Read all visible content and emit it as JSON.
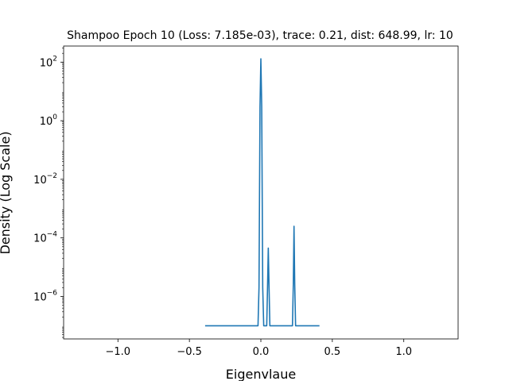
{
  "chart_data": {
    "type": "line",
    "title": "Shampoo Epoch 10 (Loss: 7.185e-03), trace: 0.21, dist: 648.99, lr: 10",
    "xlabel": "Eigenvlaue",
    "ylabel": "Density (Log Scale)",
    "xlim": [
      -1.38,
      1.38
    ],
    "ylim_log10": [
      -7.45,
      2.55
    ],
    "y_scale": "log",
    "grid": false,
    "x_ticks": [
      -1.0,
      -0.5,
      0.0,
      0.5,
      1.0
    ],
    "x_tick_labels": [
      "−1.0",
      "−0.5",
      "0.0",
      "0.5",
      "1.0"
    ],
    "y_ticks_log10": [
      -6,
      -4,
      -2,
      0,
      2
    ],
    "y_tick_labels": [
      {
        "base": "10",
        "exp": "−6"
      },
      {
        "base": "10",
        "exp": "−4"
      },
      {
        "base": "10",
        "exp": "−2"
      },
      {
        "base": "10",
        "exp": "0"
      },
      {
        "base": "10",
        "exp": "2"
      }
    ],
    "series": [
      {
        "color": "#1f77b4",
        "x": [
          -0.39,
          -0.03,
          -0.02,
          -0.013,
          -0.006,
          0.0,
          0.006,
          0.013,
          0.02,
          0.035,
          0.041,
          0.047,
          0.052,
          0.057,
          0.063,
          0.07,
          0.215,
          0.221,
          0.227,
          0.232,
          0.237,
          0.243,
          0.25,
          0.41
        ],
        "y": [
          1e-07,
          1e-07,
          1e-07,
          2e-06,
          3,
          130,
          3,
          2e-06,
          1e-07,
          1e-07,
          1e-07,
          2.5e-06,
          4.5e-05,
          2.5e-06,
          1e-07,
          1e-07,
          1e-07,
          1e-07,
          2.5e-06,
          0.00025,
          2.5e-06,
          1e-07,
          1e-07,
          1e-07
        ]
      }
    ]
  }
}
